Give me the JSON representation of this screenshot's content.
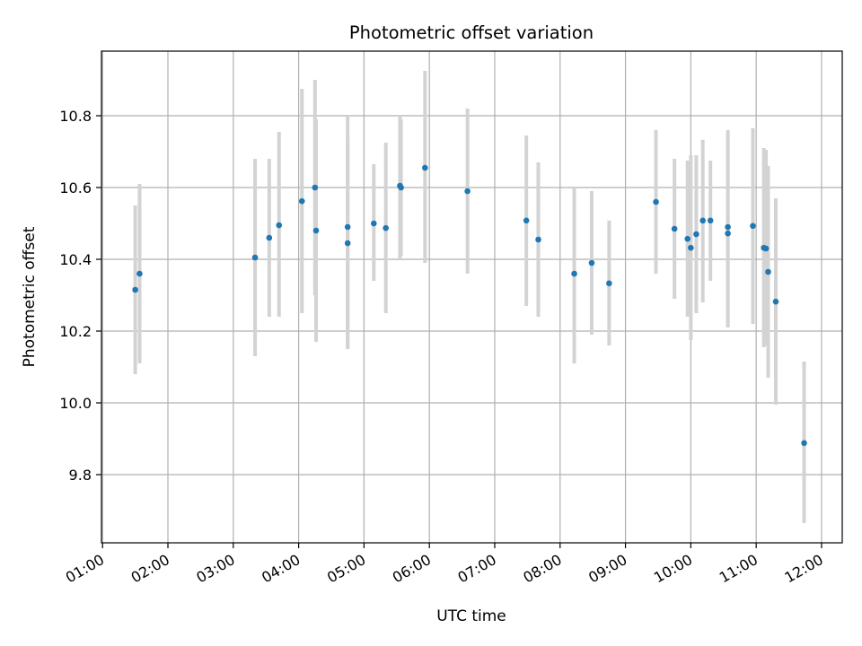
{
  "chart_data": {
    "type": "scatter",
    "title": "Photometric offset variation",
    "xlabel": "UTC time",
    "ylabel": "Photometric offset",
    "grid": true,
    "xlim": [
      "00:59",
      "12:19"
    ],
    "ylim": [
      9.61,
      10.98
    ],
    "x_ticks": [
      "01:00",
      "02:00",
      "03:00",
      "04:00",
      "05:00",
      "06:00",
      "07:00",
      "08:00",
      "09:00",
      "10:00",
      "11:00",
      "12:00"
    ],
    "y_ticks": [
      "9.8",
      "10.0",
      "10.2",
      "10.4",
      "10.6",
      "10.8"
    ],
    "colors": {
      "points": "#1f77b4",
      "error_bars": "#d3d3d3"
    },
    "series": [
      {
        "points": [
          {
            "x": "01:30",
            "y": 10.315,
            "yerr": [
              10.08,
              10.55
            ]
          },
          {
            "x": "01:34",
            "y": 10.36,
            "yerr": [
              10.11,
              10.61
            ]
          },
          {
            "x": "03:20",
            "y": 10.405,
            "yerr": [
              10.13,
              10.68
            ]
          },
          {
            "x": "03:33",
            "y": 10.46,
            "yerr": [
              10.24,
              10.68
            ]
          },
          {
            "x": "03:42",
            "y": 10.495,
            "yerr": [
              10.24,
              10.755
            ]
          },
          {
            "x": "04:03",
            "y": 10.562,
            "yerr": [
              10.25,
              10.875
            ]
          },
          {
            "x": "04:15",
            "y": 10.6,
            "yerr": [
              10.3,
              10.9
            ]
          },
          {
            "x": "04:16",
            "y": 10.48,
            "yerr": [
              10.17,
              10.79
            ]
          },
          {
            "x": "04:45",
            "y": 10.49,
            "yerr": [
              10.15,
              10.8
            ]
          },
          {
            "x": "04:45",
            "y": 10.445,
            "yerr": [
              10.15,
              10.74
            ]
          },
          {
            "x": "05:09",
            "y": 10.5,
            "yerr": [
              10.34,
              10.665
            ]
          },
          {
            "x": "05:20",
            "y": 10.487,
            "yerr": [
              10.25,
              10.725
            ]
          },
          {
            "x": "05:33",
            "y": 10.605,
            "yerr": [
              10.4,
              10.8
            ]
          },
          {
            "x": "05:34",
            "y": 10.6,
            "yerr": [
              10.41,
              10.79
            ]
          },
          {
            "x": "05:56",
            "y": 10.655,
            "yerr": [
              10.39,
              10.925
            ]
          },
          {
            "x": "06:35",
            "y": 10.59,
            "yerr": [
              10.36,
              10.82
            ]
          },
          {
            "x": "07:29",
            "y": 10.508,
            "yerr": [
              10.27,
              10.745
            ]
          },
          {
            "x": "07:40",
            "y": 10.455,
            "yerr": [
              10.24,
              10.67
            ]
          },
          {
            "x": "08:13",
            "y": 10.36,
            "yerr": [
              10.11,
              10.6
            ]
          },
          {
            "x": "08:29",
            "y": 10.39,
            "yerr": [
              10.19,
              10.59
            ]
          },
          {
            "x": "08:45",
            "y": 10.333,
            "yerr": [
              10.16,
              10.508
            ]
          },
          {
            "x": "09:28",
            "y": 10.56,
            "yerr": [
              10.36,
              10.76
            ]
          },
          {
            "x": "09:45",
            "y": 10.485,
            "yerr": [
              10.29,
              10.68
            ]
          },
          {
            "x": "09:57",
            "y": 10.457,
            "yerr": [
              10.24,
              10.675
            ]
          },
          {
            "x": "10:00",
            "y": 10.432,
            "yerr": [
              10.175,
              10.69
            ]
          },
          {
            "x": "10:05",
            "y": 10.47,
            "yerr": [
              10.25,
              10.69
            ]
          },
          {
            "x": "10:11",
            "y": 10.508,
            "yerr": [
              10.28,
              10.733
            ]
          },
          {
            "x": "10:18",
            "y": 10.508,
            "yerr": [
              10.34,
              10.675
            ]
          },
          {
            "x": "10:34",
            "y": 10.49,
            "yerr": [
              10.21,
              10.76
            ]
          },
          {
            "x": "10:34",
            "y": 10.472,
            "yerr": [
              10.21,
              10.74
            ]
          },
          {
            "x": "10:57",
            "y": 10.493,
            "yerr": [
              10.22,
              10.765
            ]
          },
          {
            "x": "11:07",
            "y": 10.432,
            "yerr": [
              10.155,
              10.71
            ]
          },
          {
            "x": "11:09",
            "y": 10.43,
            "yerr": [
              10.16,
              10.705
            ]
          },
          {
            "x": "11:11",
            "y": 10.365,
            "yerr": [
              10.07,
              10.66
            ]
          },
          {
            "x": "11:18",
            "y": 10.282,
            "yerr": [
              9.995,
              10.57
            ]
          },
          {
            "x": "11:44",
            "y": 9.888,
            "yerr": [
              9.665,
              10.115
            ]
          }
        ]
      }
    ]
  }
}
